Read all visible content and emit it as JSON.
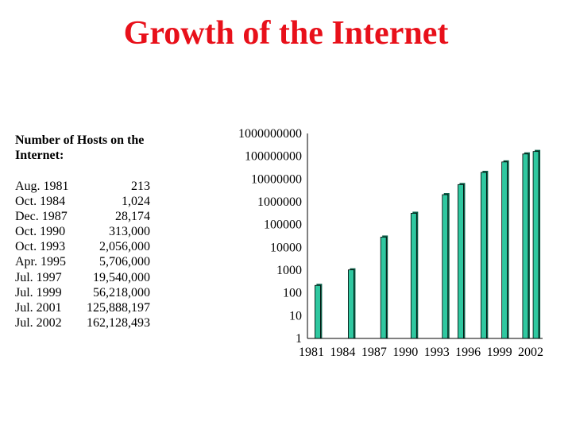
{
  "title": "Growth of the Internet",
  "hosts_heading": "Number of Hosts on the Internet:",
  "hosts_table": [
    {
      "date": "Aug. 1981",
      "count": "213"
    },
    {
      "date": "Oct. 1984",
      "count": "1,024"
    },
    {
      "date": "Dec. 1987",
      "count": "28,174"
    },
    {
      "date": "Oct. 1990",
      "count": "313,000"
    },
    {
      "date": "Oct. 1993",
      "count": "2,056,000"
    },
    {
      "date": "Apr. 1995",
      "count": "5,706,000"
    },
    {
      "date": "Jul. 1997",
      "count": "19,540,000"
    },
    {
      "date": "Jul. 1999",
      "count": "56,218,000"
    },
    {
      "date": "Jul. 2001",
      "count": "125,888,197"
    },
    {
      "date": "Jul. 2002",
      "count": "162,128,493"
    }
  ],
  "chart_data": {
    "type": "bar",
    "log_scale": true,
    "ylim": [
      1,
      1000000000
    ],
    "yticks": [
      "1",
      "10",
      "100",
      "1000",
      "10000",
      "100000",
      "1000000",
      "10000000",
      "100000000",
      "1000000000"
    ],
    "xticks": [
      "1981",
      "1984",
      "1987",
      "1990",
      "1993",
      "1996",
      "1999",
      "2002"
    ],
    "xlim": [
      1981,
      2002
    ],
    "grid": false,
    "bars": [
      {
        "x": 1981.6,
        "value": 213
      },
      {
        "x": 1984.8,
        "value": 1024
      },
      {
        "x": 1987.9,
        "value": 28174
      },
      {
        "x": 1990.8,
        "value": 313000
      },
      {
        "x": 1993.8,
        "value": 2056000
      },
      {
        "x": 1995.3,
        "value": 5706000
      },
      {
        "x": 1997.5,
        "value": 19540000
      },
      {
        "x": 1999.5,
        "value": 56218000
      },
      {
        "x": 2001.5,
        "value": 125888197
      },
      {
        "x": 2002.5,
        "value": 162128493
      }
    ],
    "colors": {
      "bar": "#2fc8a0",
      "bar_shade": "#0b5e47",
      "axis": "#000000"
    }
  }
}
